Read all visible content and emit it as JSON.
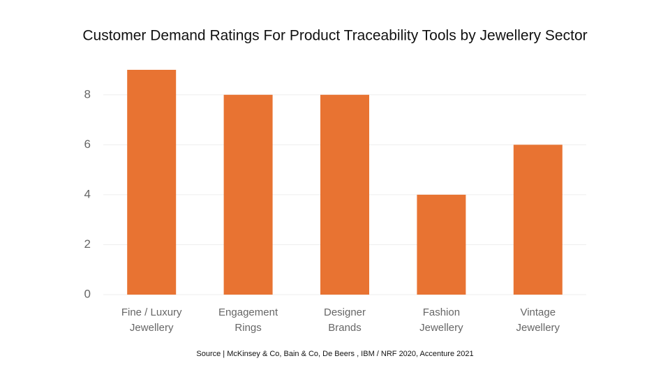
{
  "chart_data": {
    "type": "bar",
    "title": "Customer Demand Ratings For Product Traceability Tools by Jewellery Sector",
    "categories": [
      "Fine / Luxury\nJewellery",
      "Engagement\nRings",
      "Designer\nBrands",
      "Fashion\nJewellery",
      "Vintage\nJewellery"
    ],
    "values": [
      9,
      8,
      8,
      4,
      6
    ],
    "color": "#e87332",
    "ylim": [
      0,
      9
    ],
    "yticks": [
      0,
      2,
      4,
      6,
      8
    ],
    "grid": true,
    "source": "Source | McKinsey & Co, Bain & Co, De Beers , IBM / NRF 2020, Accenture 2021"
  }
}
